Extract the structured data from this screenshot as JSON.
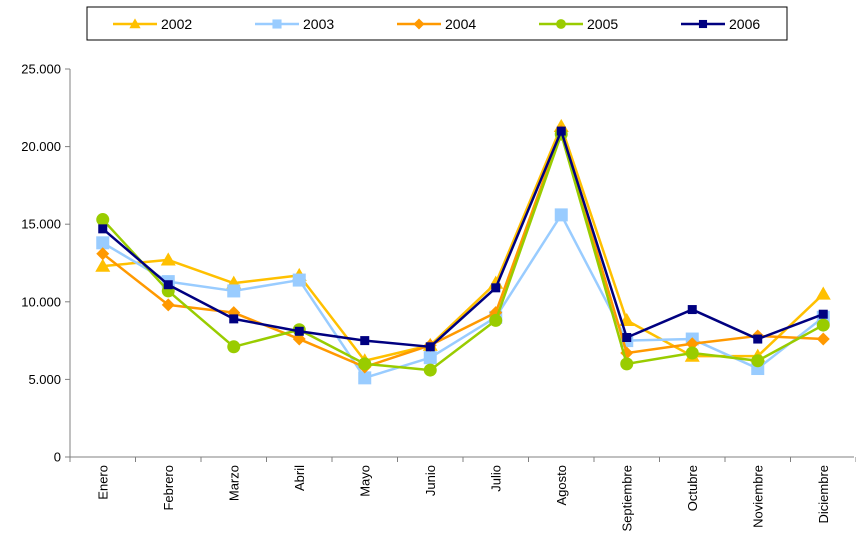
{
  "chart_data": {
    "type": "line",
    "categories": [
      "Enero",
      "Febrero",
      "Marzo",
      "Abril",
      "Mayo",
      "Junio",
      "Julio",
      "Agosto",
      "Septiembre",
      "Octubre",
      "Noviembre",
      "Diciembre"
    ],
    "y_ticks": [
      "0",
      "5.000",
      "10.000",
      "15.000",
      "20.000",
      "25.000"
    ],
    "ylim": [
      0,
      25000
    ],
    "grid": false,
    "legend_position": "top",
    "series": [
      {
        "name": "2002",
        "color": "#FFC000",
        "marker": "triangle",
        "values": [
          12300,
          12700,
          11200,
          11700,
          6200,
          7200,
          11200,
          21300,
          8800,
          6500,
          6500,
          10500
        ]
      },
      {
        "name": "2003",
        "color": "#99CCFF",
        "marker": "square",
        "values": [
          13800,
          11300,
          10700,
          11400,
          5100,
          6400,
          9000,
          15600,
          7500,
          7600,
          5700,
          9000
        ]
      },
      {
        "name": "2004",
        "color": "#FF9900",
        "marker": "diamond",
        "values": [
          13100,
          9800,
          9300,
          7600,
          5800,
          7200,
          9300,
          21000,
          6700,
          7300,
          7800,
          7600
        ]
      },
      {
        "name": "2005",
        "color": "#99CC00",
        "marker": "circle",
        "values": [
          15300,
          10700,
          7100,
          8200,
          6000,
          5600,
          8800,
          20800,
          6000,
          6700,
          6200,
          8500
        ]
      },
      {
        "name": "2006",
        "color": "#000080",
        "marker": "smallsquare",
        "values": [
          14700,
          11100,
          8900,
          8100,
          7500,
          7100,
          10900,
          21000,
          7700,
          9500,
          7600,
          9200
        ]
      }
    ]
  }
}
